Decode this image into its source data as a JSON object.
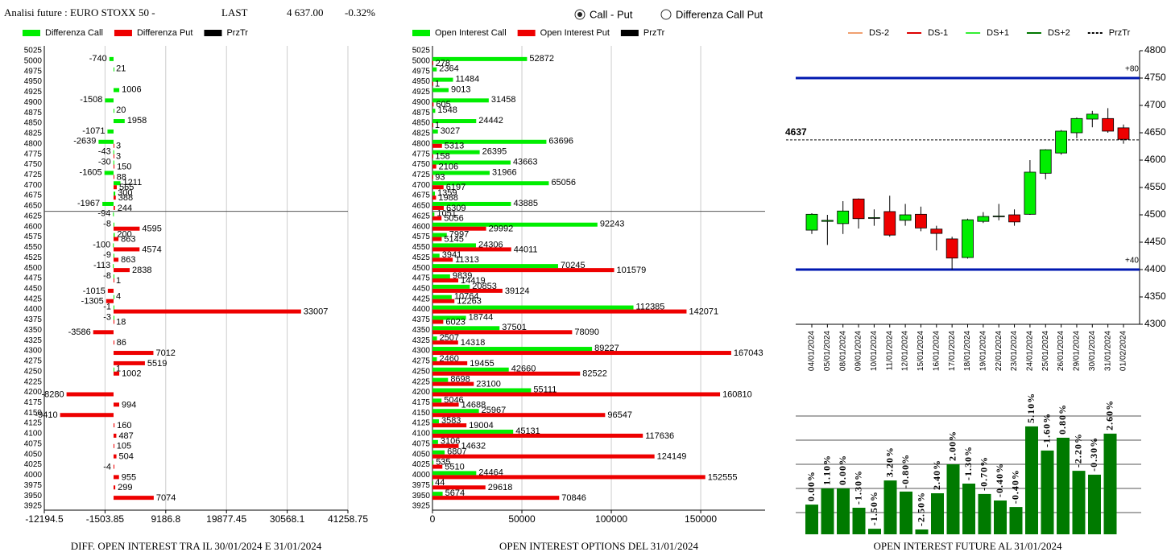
{
  "header": {
    "title": "Analisi future : EURO STOXX 50 -",
    "last_label": "LAST",
    "last_value": "4 637.00",
    "change": "-0.32%"
  },
  "controls": [
    {
      "label": "Call - Put",
      "selected": true
    },
    {
      "label": "Differenza Call Put",
      "selected": false
    }
  ],
  "chart_data": [
    {
      "type": "hbar",
      "xlabel": "DIFF. OPEN INTEREST TRA IL 30/01/2024 E 31/01/2024",
      "categories": [
        5025,
        5000,
        4975,
        4950,
        4925,
        4900,
        4875,
        4850,
        4825,
        4800,
        4775,
        4750,
        4725,
        4700,
        4675,
        4650,
        4625,
        4600,
        4575,
        4550,
        4525,
        4500,
        4475,
        4450,
        4425,
        4400,
        4375,
        4350,
        4325,
        4300,
        4275,
        4250,
        4225,
        4200,
        4175,
        4150,
        4125,
        4100,
        4075,
        4050,
        4025,
        4000,
        3975,
        3950,
        3925
      ],
      "series": [
        {
          "name": "Differenza Call",
          "color": "#00ee00",
          "values": [
            null,
            -740,
            21,
            null,
            1006,
            -1508,
            20,
            1958,
            -1071,
            -2639,
            -43,
            -30,
            -1605,
            1211,
            300,
            -1967,
            -94,
            -8,
            200,
            -100,
            -9,
            -113,
            -8,
            null,
            4,
            -1,
            -3,
            null,
            null,
            null,
            null,
            1,
            null,
            null,
            null,
            null,
            null,
            null,
            null,
            null,
            null,
            null,
            null,
            null,
            null
          ]
        },
        {
          "name": "Differenza Put",
          "color": "#ee0000",
          "values": [
            null,
            null,
            null,
            null,
            null,
            null,
            null,
            null,
            null,
            3,
            3,
            150,
            88,
            565,
            388,
            244,
            null,
            4595,
            863,
            4574,
            863,
            2838,
            1,
            -1015,
            -1305,
            33007,
            18,
            -3586,
            86,
            7012,
            5519,
            1002,
            null,
            -8280,
            994,
            -9410,
            160,
            487,
            105,
            504,
            -4,
            955,
            299,
            7074,
            null
          ]
        }
      ],
      "price_line": {
        "name": "PrzTr",
        "color": "#000000",
        "value": 4637
      },
      "xlim": [
        -12194.5,
        41258.75
      ],
      "xticks": [
        -12194.5,
        -1503.85,
        9186.8,
        19877.45,
        30568.1,
        41258.75
      ],
      "grid": true
    },
    {
      "type": "hbar",
      "xlabel": "OPEN INTEREST OPTIONS DEL 31/01/2024",
      "categories": [
        5025,
        5000,
        4975,
        4950,
        4925,
        4900,
        4875,
        4850,
        4825,
        4800,
        4775,
        4750,
        4725,
        4700,
        4675,
        4650,
        4625,
        4600,
        4575,
        4550,
        4525,
        4500,
        4475,
        4450,
        4425,
        4400,
        4375,
        4350,
        4325,
        4300,
        4275,
        4250,
        4225,
        4200,
        4175,
        4150,
        4125,
        4100,
        4075,
        4050,
        4025,
        4000,
        3975,
        3950,
        3925
      ],
      "series": [
        {
          "name": "Open Interest Call",
          "color": "#00ee00",
          "values": [
            null,
            52872,
            2364,
            11484,
            9013,
            31458,
            1548,
            24442,
            3027,
            63696,
            26395,
            43663,
            31966,
            65056,
            1359,
            43885,
            1051,
            92243,
            7997,
            24306,
            3941,
            70245,
            9839,
            20853,
            10764,
            112385,
            18744,
            37501,
            2507,
            89227,
            2460,
            42660,
            8698,
            55111,
            5046,
            25967,
            3583,
            45131,
            3106,
            6807,
            535,
            24464,
            44,
            5674,
            null
          ]
        },
        {
          "name": "Open Interest Put",
          "color": "#ee0000",
          "values": [
            null,
            278,
            null,
            1,
            null,
            605,
            null,
            1,
            null,
            5313,
            158,
            2106,
            93,
            6197,
            1988,
            6309,
            5056,
            29992,
            5145,
            44011,
            11313,
            101579,
            14419,
            39124,
            12263,
            142071,
            6023,
            78090,
            14318,
            167043,
            19455,
            82522,
            23100,
            160810,
            14688,
            96547,
            19004,
            117636,
            14632,
            124149,
            5510,
            152555,
            29618,
            70846,
            null
          ]
        }
      ],
      "price_line": {
        "name": "PrzTr",
        "color": "#000000",
        "value": 4637
      },
      "xlim": [
        0,
        186000
      ],
      "xticks": [
        0,
        50000,
        100000,
        150000
      ],
      "grid": true
    },
    {
      "type": "candlestick",
      "x": [
        "04/01/2024",
        "05/01/2024",
        "08/01/2024",
        "09/01/2024",
        "10/01/2024",
        "11/01/2024",
        "12/01/2024",
        "15/01/2024",
        "16/01/2024",
        "17/01/2024",
        "18/01/2024",
        "19/01/2024",
        "22/01/2024",
        "23/01/2024",
        "24/01/2024",
        "25/01/2024",
        "26/01/2024",
        "29/01/2024",
        "30/01/2024",
        "31/01/2024",
        "01/02/2024"
      ],
      "open": [
        4472,
        4488,
        4484,
        4529,
        4494,
        4506,
        4490,
        4501,
        4474,
        4456,
        4422,
        4488,
        4497,
        4500,
        4501,
        4576,
        4613,
        4650,
        4675,
        4676,
        4659
      ],
      "high": [
        4503,
        4500,
        4525,
        4530,
        4510,
        4535,
        4520,
        4515,
        4480,
        4460,
        4493,
        4505,
        4520,
        4510,
        4600,
        4620,
        4655,
        4678,
        4690,
        4695,
        4665
      ],
      "low": [
        4465,
        4445,
        4465,
        4475,
        4480,
        4460,
        4480,
        4470,
        4435,
        4400,
        4420,
        4485,
        4490,
        4480,
        4500,
        4565,
        4610,
        4640,
        4660,
        4650,
        4630
      ],
      "close": [
        4501,
        4490,
        4507,
        4493,
        4495,
        4463,
        4500,
        4476,
        4466,
        4421,
        4491,
        4497,
        4498,
        4487,
        4578,
        4619,
        4653,
        4676,
        4684,
        4653,
        4638
      ],
      "up_color": "#00ee00",
      "down_color": "#ee0000",
      "legend": [
        {
          "name": "DS-2",
          "color": "#f0a070",
          "dash": false
        },
        {
          "name": "DS-1",
          "color": "#dd0000",
          "dash": false
        },
        {
          "name": "DS+1",
          "color": "#33ee33",
          "dash": false
        },
        {
          "name": "DS+2",
          "color": "#007700",
          "dash": false
        },
        {
          "name": "PrzTr",
          "color": "#000000",
          "dash": true
        }
      ],
      "levels": [
        {
          "value": 4750,
          "label": "+80"
        },
        {
          "value": 4400,
          "label": "+40"
        }
      ],
      "level_color": "#0018b0",
      "price": 4637,
      "ylim": [
        4300,
        4800
      ],
      "yticks": [
        4300,
        4350,
        4400,
        4450,
        4500,
        4550,
        4600,
        4650,
        4700,
        4750,
        4800
      ]
    },
    {
      "type": "bar",
      "xlabel": "OPEN INTEREST FUTURE AL 31/01/2024",
      "color": "#007a00",
      "values": [
        1.23,
        1.9,
        1.9,
        1.1,
        0.23,
        2.23,
        1.77,
        0.2,
        1.7,
        2.9,
        2.1,
        1.67,
        1.4,
        1.13,
        4.47,
        3.47,
        4.0,
        2.63,
        2.47,
        4.17
      ],
      "value_labels": [
        "0.00%",
        "1.10%",
        "0.00%",
        "-1.30%",
        "-1.50%",
        "3.20%",
        "-0.80%",
        "-2.50%",
        "2.40%",
        "2.00%",
        "-1.30%",
        "-0.70%",
        "-0.40%",
        "-0.40%",
        "5.10%",
        "-1.60%",
        "0.80%",
        "-2.20%",
        "-0.30%",
        "2.60%"
      ],
      "ylim": [
        0,
        4.9
      ],
      "gridlines": [
        0.9,
        1.9,
        2.9,
        3.9,
        4.9
      ]
    }
  ]
}
